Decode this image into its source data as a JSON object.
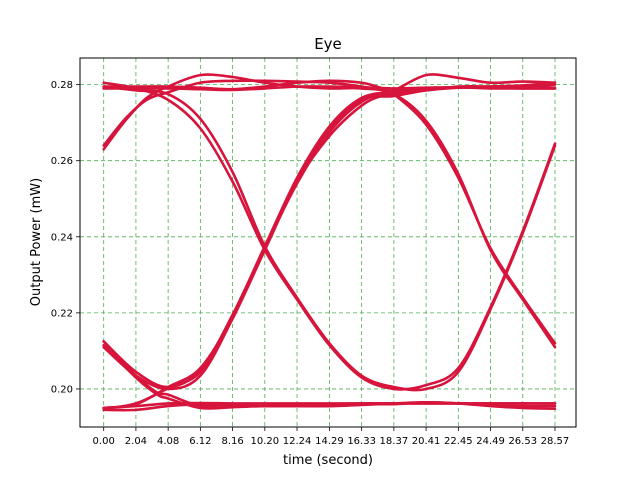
{
  "chart_data": {
    "type": "line",
    "title": "Eye",
    "xlabel": "time (second)",
    "ylabel": "Output Power (mW)",
    "xlim": [
      -1.5,
      29.9
    ],
    "ylim": [
      0.19,
      0.287
    ],
    "x_ticks": [
      "0.00",
      "2.04",
      "4.08",
      "6.12",
      "8.16",
      "10.20",
      "12.24",
      "14.29",
      "16.33",
      "18.37",
      "20.41",
      "22.45",
      "24.49",
      "26.53",
      "28.57"
    ],
    "y_ticks": [
      "0.20",
      "0.22",
      "0.24",
      "0.26",
      "0.28"
    ],
    "grid": true,
    "grid_color": "#4caf50",
    "line_color": "#d6143c",
    "series": [
      {
        "x": [
          0,
          1.36,
          2.72,
          4.08,
          6.12,
          8.16,
          10.2,
          12.24,
          14.29,
          16.33,
          17.69,
          18.37,
          20.41,
          22.45,
          24.49,
          26.53,
          28.57
        ],
        "y": [
          0.264,
          0.271,
          0.276,
          0.278,
          0.2805,
          0.281,
          0.281,
          0.2808,
          0.2805,
          0.2795,
          0.2785,
          0.2775,
          0.2695,
          0.2555,
          0.237,
          0.224,
          0.212
        ]
      },
      {
        "x": [
          0,
          1.36,
          2.72,
          4.08,
          6.12,
          8.16,
          10.2,
          12.24,
          14.29,
          16.33,
          18.37,
          20.41,
          22.45,
          24.49,
          26.53,
          28.57
        ],
        "y": [
          0.263,
          0.2705,
          0.2765,
          0.2795,
          0.2825,
          0.282,
          0.2805,
          0.2795,
          0.279,
          0.279,
          0.2775,
          0.2705,
          0.2565,
          0.2365,
          0.2235,
          0.211
        ]
      },
      {
        "x": [
          0,
          2.04,
          4.08,
          6.12,
          8.16,
          10.2,
          12.24,
          14.29,
          16.33,
          18.37,
          20.41,
          22.45,
          24.49,
          26.53,
          28.57
        ],
        "y": [
          0.2795,
          0.2785,
          0.2775,
          0.271,
          0.257,
          0.2375,
          0.224,
          0.212,
          0.2035,
          0.2005,
          0.2,
          0.2045,
          0.221,
          0.241,
          0.264
        ]
      },
      {
        "x": [
          0,
          2.04,
          4.08,
          6.12,
          8.16,
          10.2,
          12.24,
          14.29,
          16.33,
          18.37,
          20.41,
          22.45,
          24.49,
          26.53,
          28.57
        ],
        "y": [
          0.2805,
          0.279,
          0.276,
          0.2685,
          0.2545,
          0.2365,
          0.2235,
          0.2115,
          0.203,
          0.2,
          0.201,
          0.2055,
          0.2215,
          0.2415,
          0.2645
        ]
      },
      {
        "x": [
          0,
          2.04,
          4.08,
          6.12,
          8.16,
          10.2,
          12.24,
          14.29,
          16.33,
          17.69,
          18.37,
          20.41,
          22.45,
          24.49,
          26.53,
          28.57
        ],
        "y": [
          0.2795,
          0.2795,
          0.2795,
          0.2792,
          0.2788,
          0.2795,
          0.2805,
          0.281,
          0.2805,
          0.279,
          0.2785,
          0.2825,
          0.2818,
          0.2805,
          0.2808,
          0.2805
        ]
      },
      {
        "x": [
          0,
          2.04,
          4.08,
          6.12,
          8.16,
          10.2,
          12.24,
          14.29,
          16.33,
          18.37,
          20.41,
          22.45,
          24.49,
          26.53,
          28.57
        ],
        "y": [
          0.279,
          0.279,
          0.279,
          0.2788,
          0.2786,
          0.279,
          0.2795,
          0.2795,
          0.2793,
          0.279,
          0.2792,
          0.2793,
          0.279,
          0.279,
          0.279
        ]
      },
      {
        "x": [
          0,
          2.04,
          4.08,
          6.12,
          8.16,
          10.2,
          12.24,
          14.29,
          16.33,
          18.37,
          20.41,
          22.45,
          24.49,
          26.53,
          28.57
        ],
        "y": [
          0.2125,
          0.2045,
          0.2005,
          0.205,
          0.2195,
          0.2375,
          0.2555,
          0.269,
          0.2765,
          0.278,
          0.2785,
          0.2795,
          0.2795,
          0.2795,
          0.28
        ]
      },
      {
        "x": [
          0,
          2.04,
          4.08,
          6.12,
          8.16,
          10.2,
          12.24,
          14.29,
          16.33,
          18.37,
          20.41,
          22.45,
          24.49,
          26.53,
          28.57
        ],
        "y": [
          0.211,
          0.2035,
          0.2,
          0.2035,
          0.2185,
          0.2365,
          0.2545,
          0.268,
          0.276,
          0.277,
          0.2785,
          0.2792,
          0.2795,
          0.2798,
          0.2805
        ]
      },
      {
        "x": [
          0,
          2.04,
          3.4,
          4.08,
          6.12,
          8.16,
          10.2,
          12.24,
          14.29,
          16.33,
          18.37,
          20.41,
          22.45,
          24.49,
          26.53,
          28.57
        ],
        "y": [
          0.2125,
          0.2035,
          0.199,
          0.1985,
          0.1955,
          0.1955,
          0.1955,
          0.1958,
          0.196,
          0.1962,
          0.1962,
          0.1962,
          0.1962,
          0.1962,
          0.1962,
          0.1962
        ]
      },
      {
        "x": [
          0,
          2.04,
          3.4,
          4.08,
          6.12,
          8.16,
          10.2,
          12.24,
          14.29,
          16.33,
          18.37,
          20.41,
          22.45,
          24.49,
          26.53,
          28.57
        ],
        "y": [
          0.2115,
          0.203,
          0.1985,
          0.1975,
          0.195,
          0.1952,
          0.1955,
          0.1955,
          0.1955,
          0.196,
          0.196,
          0.1965,
          0.1962,
          0.1958,
          0.1955,
          0.1955
        ]
      },
      {
        "x": [
          0,
          2.04,
          4.08,
          6.12,
          8.16,
          10.2,
          12.24,
          14.29,
          16.33,
          18.37,
          20.41,
          22.45,
          24.49,
          26.53,
          28.57
        ],
        "y": [
          0.195,
          0.1955,
          0.1962,
          0.1963,
          0.1962,
          0.1962,
          0.1962,
          0.1962,
          0.1962,
          0.1962,
          0.1962,
          0.1962,
          0.1962,
          0.1962,
          0.1962
        ]
      },
      {
        "x": [
          0,
          2.04,
          4.08,
          6.12,
          8.16,
          10.2,
          12.24,
          14.29,
          16.33,
          18.37,
          20.41,
          22.45,
          24.49,
          26.53,
          28.57
        ],
        "y": [
          0.1945,
          0.1945,
          0.1955,
          0.196,
          0.1958,
          0.1955,
          0.1955,
          0.1955,
          0.1958,
          0.1962,
          0.1965,
          0.1962,
          0.1955,
          0.195,
          0.1948
        ]
      },
      {
        "x": [
          0,
          2.04,
          4.08,
          6.12,
          8.16,
          10.2,
          12.24,
          14.29,
          16.33,
          17.69,
          18.37,
          20.41,
          22.45,
          24.49,
          26.53,
          28.57
        ],
        "y": [
          0.195,
          0.196,
          0.2005,
          0.2055,
          0.219,
          0.2375,
          0.2545,
          0.2665,
          0.2745,
          0.2772,
          0.2775,
          0.279,
          0.2792,
          0.2792,
          0.279,
          0.279
        ]
      },
      {
        "x": [
          0,
          2.04,
          4.08,
          6.12,
          8.16,
          10.2,
          12.24,
          14.29,
          16.33,
          18.37,
          20.41,
          22.45,
          24.49,
          26.53,
          28.57
        ],
        "y": [
          0.1948,
          0.1962,
          0.2002,
          0.2045,
          0.2185,
          0.237,
          0.254,
          0.2675,
          0.2755,
          0.2785,
          0.279,
          0.2793,
          0.2795,
          0.2795,
          0.2792
        ]
      }
    ]
  }
}
